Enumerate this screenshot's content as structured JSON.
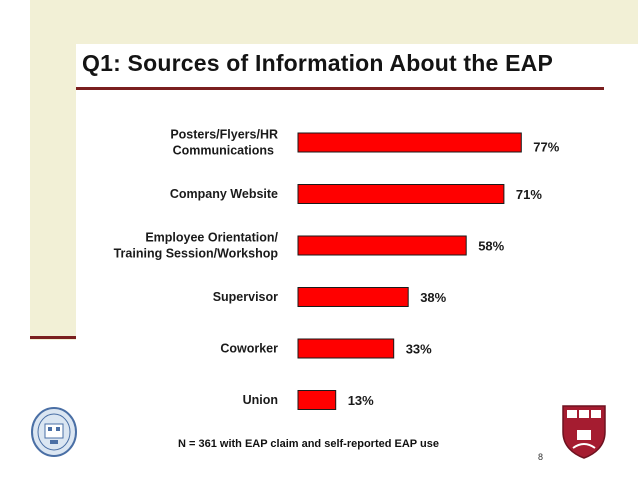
{
  "title": "Q1: Sources of Information About the EAP",
  "footnote": "N = 361 with EAP claim and self-reported EAP use",
  "page_number": "8",
  "colors": {
    "bar": "#ff0000",
    "bar_outline": "#1a1a1a",
    "accent_band": "#f2f0d6",
    "rule": "#7a1f1f"
  },
  "logos": {
    "left": "university-seal-icon",
    "right": "harvard-shield-icon"
  },
  "chart_data": {
    "type": "bar",
    "orientation": "horizontal",
    "categories": [
      [
        "Posters/Flyers/HR",
        "Communications"
      ],
      [
        "Company Website"
      ],
      [
        "Employee Orientation/",
        "Training Session/Workshop"
      ],
      [
        "Supervisor"
      ],
      [
        "Coworker"
      ],
      [
        "Union"
      ]
    ],
    "values": [
      77,
      71,
      58,
      38,
      33,
      13
    ],
    "value_labels": [
      "77%",
      "71%",
      "58%",
      "38%",
      "33%",
      "13%"
    ],
    "xlim": [
      0,
      100
    ],
    "grid": false,
    "legend": "none"
  }
}
